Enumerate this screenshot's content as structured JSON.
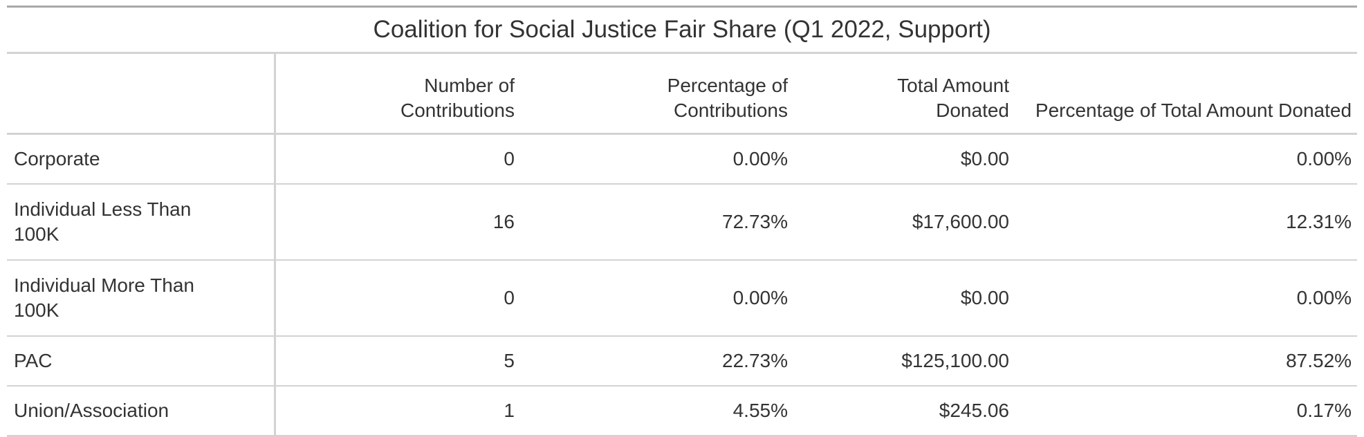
{
  "table": {
    "title": "Coalition for Social Justice Fair Share (Q1 2022, Support)",
    "stub_header": "",
    "columns": [
      "Number of Contributions",
      "Percentage of Contributions",
      "Total Amount Donated",
      "Percentage of Total Amount Donated"
    ],
    "rows": [
      {
        "label": "Corporate",
        "cells": [
          "0",
          "0.00%",
          "$0.00",
          "0.00%"
        ]
      },
      {
        "label": "Individual Less Than 100K",
        "cells": [
          "16",
          "72.73%",
          "$17,600.00",
          "12.31%"
        ]
      },
      {
        "label": "Individual More Than 100K",
        "cells": [
          "0",
          "0.00%",
          "$0.00",
          "0.00%"
        ]
      },
      {
        "label": "PAC",
        "cells": [
          "5",
          "22.73%",
          "$125,100.00",
          "87.52%"
        ]
      },
      {
        "label": "Union/Association",
        "cells": [
          "1",
          "4.55%",
          "$245.06",
          "0.17%"
        ]
      }
    ]
  }
}
